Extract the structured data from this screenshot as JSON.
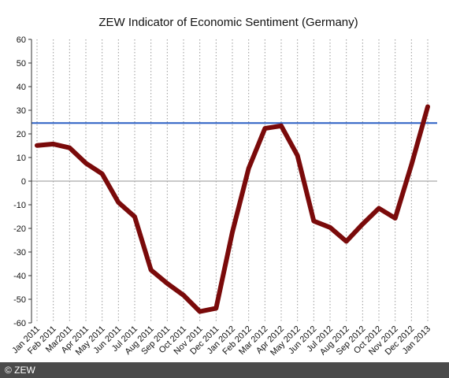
{
  "footer": {
    "credit": "© ZEW"
  },
  "chart_data": {
    "type": "line",
    "title": "ZEW Indicator of Economic Sentiment (Germany)",
    "xlabel": "",
    "ylabel": "",
    "ylim": [
      -60,
      60
    ],
    "yticks": [
      60,
      50,
      40,
      30,
      20,
      10,
      0,
      -10,
      -20,
      -30,
      -40,
      -50,
      -60
    ],
    "grid": "vertical dotted",
    "categories": [
      "Jan 2011",
      "Feb 2011",
      "Mar2011",
      "Apr 2011",
      "May 2011",
      "Jun 2011",
      "Jul 2011",
      "Aug 2011",
      "Sep 2011",
      "Oct 2011",
      "Nov 2011",
      "Dec 2011",
      "Jan 2012",
      "Feb 2012",
      "Mar 2012",
      "Apr 2012",
      "May 2012",
      "Jun 2012",
      "Jul 2012",
      "Aug 2012",
      "Sep 2012",
      "Oct 2012",
      "Nov 2012",
      "Dec 2012",
      "Jan 2013"
    ],
    "series": [
      {
        "values": [
          15.1,
          15.7,
          14.1,
          7.6,
          3.1,
          -9.0,
          -15.1,
          -37.6,
          -43.3,
          -48.3,
          -55.2,
          -53.8,
          -21.6,
          5.4,
          22.3,
          23.4,
          10.8,
          -16.9,
          -19.6,
          -25.5,
          -18.2,
          -11.5,
          -15.7,
          6.9,
          31.5
        ],
        "color": "#7a0a0a"
      }
    ],
    "reference_line": {
      "value": 24.6,
      "color": "#2a5fc4"
    },
    "zero_line_color": "#aaaaaa"
  }
}
